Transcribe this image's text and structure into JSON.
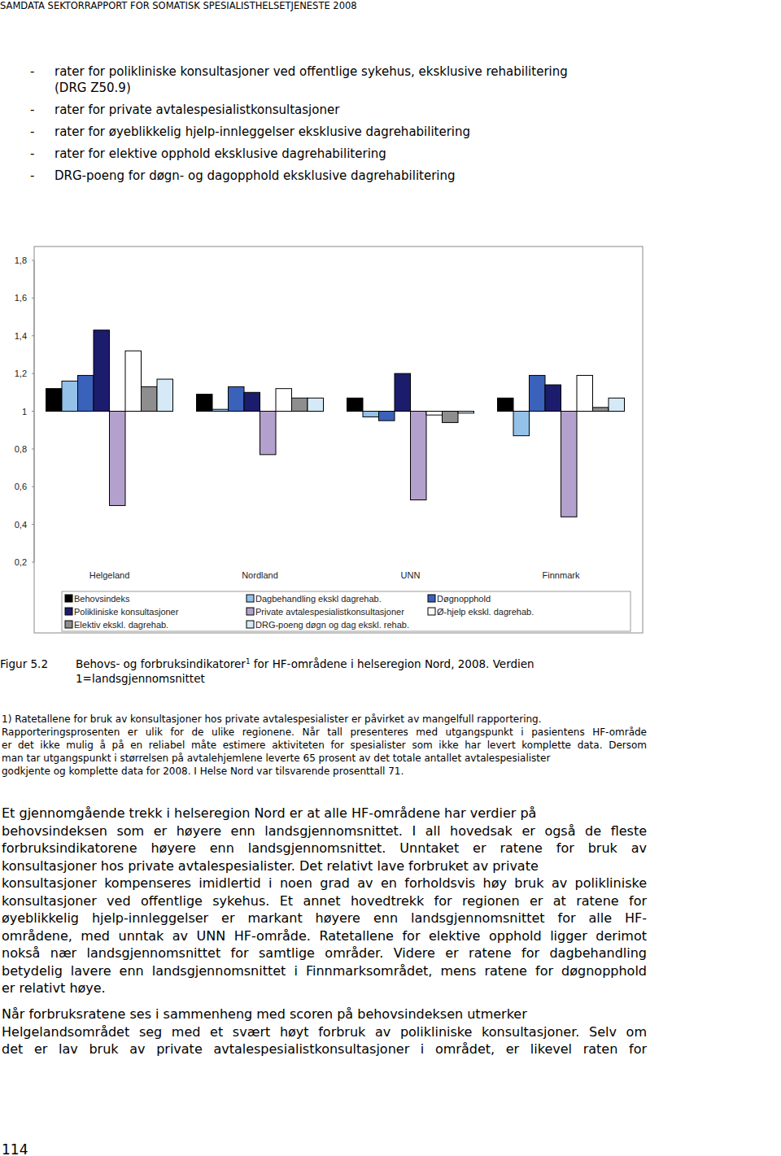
{
  "header": "SAMDATA SEKTORRAPPORT FOR SOMATISK SPESIALISTHELSETJENESTE 2008",
  "bullet_marker": "-",
  "bullets": [
    [
      "rater for polikliniske konsultasjoner ved offentlige sykehus, eksklusive rehabilitering",
      "(DRG Z50.9)"
    ],
    [
      "rater for private avtalespesialistkonsultasjoner"
    ],
    [
      "rater for øyeblikkelig hjelp-innleggelser eksklusive dagrehabilitering"
    ],
    [
      "rater for elektive opphold eksklusive dagrehabilitering"
    ],
    [
      "DRG-poeng for døgn- og dagopphold eksklusive dagrehabilitering"
    ]
  ],
  "chart_data": {
    "type": "bar",
    "categories": [
      "Helgeland",
      "Nordland",
      "UNN",
      "Finnmark"
    ],
    "baseline": 1,
    "series": [
      {
        "name": "Behovsindeks",
        "color": "#000000",
        "values": [
          1.12,
          1.09,
          1.07,
          1.07
        ]
      },
      {
        "name": "Dagbehandling ekskl dagrehab.",
        "color": "#93c1e8",
        "values": [
          1.16,
          1.01,
          0.97,
          0.87
        ]
      },
      {
        "name": "Døgnopphold",
        "color": "#3a62ba",
        "values": [
          1.19,
          1.13,
          0.95,
          1.19
        ]
      },
      {
        "name": "Polikliniske konsultasjoner",
        "color": "#1c1c6c",
        "values": [
          1.43,
          1.1,
          1.2,
          1.14
        ]
      },
      {
        "name": "Private avtalespesialistkonsultasjoner",
        "color": "#b4a0cc",
        "values": [
          0.5,
          0.77,
          0.53,
          0.44
        ]
      },
      {
        "name": "Ø-hjelp ekskl. dagrehab.",
        "color": "#ffffff",
        "values": [
          1.32,
          1.12,
          0.98,
          1.19
        ]
      },
      {
        "name": "Elektiv ekskl. dagrehab.",
        "color": "#8e8e8e",
        "values": [
          1.13,
          1.07,
          0.94,
          1.02
        ]
      },
      {
        "name": "DRG-poeng døgn og dag ekskl. rehab.",
        "color": "#d6e9f6",
        "values": [
          1.17,
          1.07,
          0.99,
          1.07
        ]
      }
    ],
    "ylim": [
      0.2,
      1.8
    ],
    "yticks": [
      {
        "value": 0.2,
        "label": "0,2"
      },
      {
        "value": 0.4,
        "label": "0,4"
      },
      {
        "value": 0.6,
        "label": "0,6"
      },
      {
        "value": 0.8,
        "label": "0,8"
      },
      1,
      {
        "value": 1.2,
        "label": "1,2"
      },
      {
        "value": 1.4,
        "label": "1,4"
      },
      {
        "value": 1.6,
        "label": "1,6"
      },
      {
        "value": 1.8,
        "label": "1,8"
      }
    ],
    "grid": false,
    "legend": "bottom"
  },
  "caption": {
    "label": "Figur 5.2",
    "line1": "Behovs- og forbruksindikatorer",
    "footnote_ref": "1",
    "line1_rest": " for HF-områdene i helseregion Nord, 2008. Verdien",
    "line2": "1=landsgjennomsnittet"
  },
  "footnote": [
    "1) Ratetallene for bruk av konsultasjoner hos private avtalespesialister er påvirket av mangelfull rapportering.",
    "Rapporteringsprosenten er ulik for de ulike regionene. Når tall presenteres med utgangspunkt i pasientens HF-område",
    "er det ikke mulig å på en reliabel måte estimere aktiviteten for spesialister som ikke har levert komplette data. Dersom",
    "man tar utgangspunkt i størrelsen på avtalehjemlene leverte 65 prosent av det totale antallet avtalespesialister",
    "godkjente og komplette data for 2008. I Helse Nord var tilsvarende prosenttall 71."
  ],
  "paragraphs": [
    [
      "Et gjennomgående trekk i helseregion Nord er at alle HF-områdene har verdier på",
      "behovsindeksen som er høyere enn landsgjennomsnittet. I all hovedsak er også de fleste",
      "forbruksindikatorene høyere enn landsgjennomsnittet. Unntaket er ratene for bruk av",
      "konsultasjoner hos private avtalespesialister. Det relativt lave forbruket av private",
      "konsultasjoner kompenseres imidlertid i noen grad av en forholdsvis høy bruk av polikliniske",
      "konsultasjoner ved offentlige sykehus. Et annet hovedtrekk for regionen er at ratene for",
      "øyeblikkelig hjelp-innleggelser er markant høyere enn landsgjennomsnittet for alle HF-",
      "områdene, med unntak av UNN HF-område. Ratetallene for elektive opphold ligger derimot",
      "nokså nær landsgjennomsnittet for samtlige områder. Videre er ratene for dagbehandling",
      "betydelig lavere enn landsgjennomsnittet i Finnmarksområdet, mens ratene for døgnopphold",
      "er relativt høye."
    ],
    [
      "Når forbruksratene ses i sammenheng med scoren på behovsindeksen utmerker",
      "Helgelandsområdet seg med et svært høyt forbruk av polikliniske konsultasjoner. Selv om",
      "det er lav bruk av private avtalespesialistkonsultasjoner i området, er likevel raten for"
    ]
  ],
  "page_number": "114"
}
